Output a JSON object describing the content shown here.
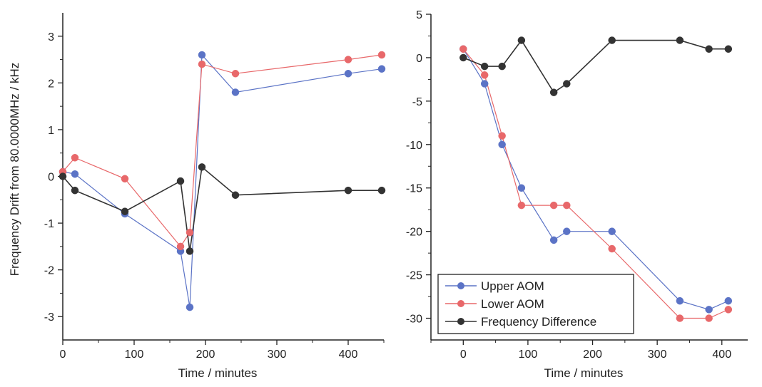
{
  "colors": {
    "upper": "#5b73c6",
    "lower": "#e8686a",
    "difference": "#333333",
    "axis": "#222222"
  },
  "chart_data": [
    {
      "type": "line",
      "xlabel": "Time / minutes",
      "ylabel": "Frequency Drift from 80.0000MHz  /  kHz",
      "xlim": [
        0,
        450
      ],
      "ylim": [
        -3.5,
        3.5
      ],
      "xticks": [
        "0",
        "100",
        "200",
        "300",
        "400"
      ],
      "yticks": [
        "3",
        "2",
        "1",
        "0",
        "-1",
        "-2",
        "-3"
      ],
      "legend": "none",
      "series": [
        {
          "key": "upper",
          "x": [
            0,
            17,
            87,
            165,
            178,
            195,
            242,
            400,
            447
          ],
          "y": [
            0.1,
            0.05,
            -0.8,
            -1.6,
            -2.8,
            2.6,
            1.8,
            2.2,
            2.3
          ]
        },
        {
          "key": "lower",
          "x": [
            0,
            17,
            87,
            165,
            178,
            195,
            242,
            400,
            447
          ],
          "y": [
            0.1,
            0.4,
            -0.05,
            -1.5,
            -1.2,
            2.4,
            2.2,
            2.5,
            2.6
          ]
        },
        {
          "key": "difference",
          "x": [
            0,
            17,
            87,
            165,
            178,
            195,
            242,
            400,
            447
          ],
          "y": [
            0.0,
            -0.3,
            -0.75,
            -0.1,
            -1.6,
            0.2,
            -0.4,
            -0.3,
            -0.3
          ]
        }
      ]
    },
    {
      "type": "line",
      "xlabel": "Time / minutes",
      "ylabel": "",
      "xlim": [
        -50,
        440
      ],
      "ylim": [
        -32.5,
        5
      ],
      "xticks": [
        "0",
        "100",
        "200",
        "300",
        "400"
      ],
      "yticks": [
        "5",
        "0",
        "-5",
        "-10",
        "-15",
        "-20",
        "-25",
        "-30"
      ],
      "legend": "bottom-left",
      "series": [
        {
          "key": "upper",
          "name": "Upper AOM",
          "x": [
            0,
            33,
            60,
            90,
            140,
            160,
            230,
            335,
            380,
            410
          ],
          "y": [
            1,
            -3,
            -10,
            -15,
            -21,
            -20,
            -20,
            -28,
            -29,
            -28
          ]
        },
        {
          "key": "lower",
          "name": "Lower AOM",
          "x": [
            0,
            33,
            60,
            90,
            140,
            160,
            230,
            335,
            380,
            410
          ],
          "y": [
            1,
            -2,
            -9,
            -17,
            -17,
            -17,
            -22,
            -30,
            -30,
            -29
          ]
        },
        {
          "key": "difference",
          "name": "Frequency Difference",
          "x": [
            0,
            33,
            60,
            90,
            140,
            160,
            230,
            335,
            380,
            410
          ],
          "y": [
            0,
            -1,
            -1,
            2,
            -4,
            -3,
            2,
            2,
            1,
            1
          ]
        }
      ]
    }
  ]
}
